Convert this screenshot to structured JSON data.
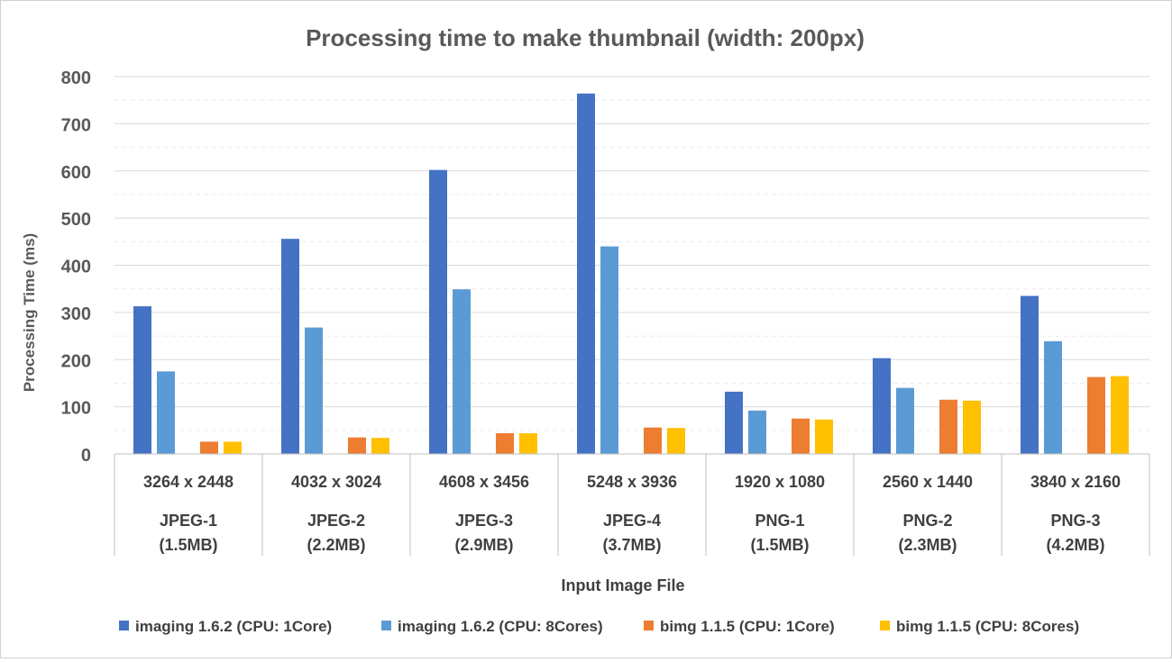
{
  "chart_data": {
    "type": "bar",
    "title": "Processing time to make thumbnail (width: 200px)",
    "xlabel": "Input Image File",
    "ylabel": "Processing Time (ms)",
    "ylim": [
      0,
      800
    ],
    "yticks": [
      0,
      100,
      200,
      300,
      400,
      500,
      600,
      700,
      800
    ],
    "grid": true,
    "legend_position": "bottom",
    "categories": [
      {
        "resolution": "3264 x 2448",
        "name": "JPEG-1",
        "size": "(1.5MB)"
      },
      {
        "resolution": "4032 x 3024",
        "name": "JPEG-2",
        "size": "(2.2MB)"
      },
      {
        "resolution": "4608 x 3456",
        "name": "JPEG-3",
        "size": "(2.9MB)"
      },
      {
        "resolution": "5248 x 3936",
        "name": "JPEG-4",
        "size": "(3.7MB)"
      },
      {
        "resolution": "1920 x 1080",
        "name": "PNG-1",
        "size": "(1.5MB)"
      },
      {
        "resolution": "2560 x 1440",
        "name": "PNG-2",
        "size": "(2.3MB)"
      },
      {
        "resolution": "3840 x 2160",
        "name": "PNG-3",
        "size": "(4.2MB)"
      }
    ],
    "series": [
      {
        "name": "imaging 1.6.2 (CPU: 1Core)",
        "color": "#4472C4",
        "values": [
          313,
          456,
          602,
          764,
          132,
          203,
          335
        ]
      },
      {
        "name": "imaging 1.6.2 (CPU: 8Cores)",
        "color": "#5B9BD5",
        "values": [
          175,
          268,
          349,
          440,
          92,
          140,
          239
        ]
      },
      {
        "name": "bimg 1.1.5 (CPU: 1Core)",
        "color": "#ED7D31",
        "values": [
          26,
          35,
          44,
          56,
          75,
          115,
          163
        ]
      },
      {
        "name": "bimg 1.1.5 (CPU: 8Cores)",
        "color": "#FFC000",
        "values": [
          26,
          34,
          44,
          55,
          73,
          113,
          165
        ]
      }
    ]
  }
}
